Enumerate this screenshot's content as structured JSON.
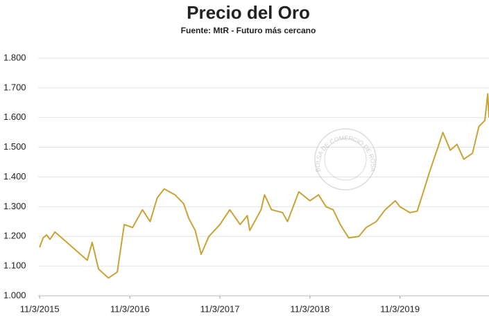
{
  "chart_data": {
    "type": "line",
    "title": "Precio del Oro",
    "subtitle": "Fuente: MtR - Futuro más cercano",
    "watermark": "BOLSA DE COMERCIO DE ROSARIO",
    "x": [
      "2015-03-11",
      "2015-03-25",
      "2015-04-08",
      "2015-04-22",
      "2015-05-12",
      "2015-09-20",
      "2015-10-10",
      "2015-11-05",
      "2015-12-15",
      "2016-01-20",
      "2016-02-17",
      "2016-03-22",
      "2016-05-01",
      "2016-06-01",
      "2016-06-30",
      "2016-07-28",
      "2016-09-10",
      "2016-10-15",
      "2016-11-05",
      "2016-12-01",
      "2016-12-25",
      "2017-01-25",
      "2017-03-11",
      "2017-04-20",
      "2017-06-01",
      "2017-06-30",
      "2017-07-10",
      "2017-08-25",
      "2017-09-08",
      "2017-10-06",
      "2017-11-20",
      "2017-12-10",
      "2018-01-25",
      "2018-03-11",
      "2018-04-15",
      "2018-05-15",
      "2018-06-13",
      "2018-07-12",
      "2018-08-15",
      "2018-09-25",
      "2018-10-25",
      "2018-12-05",
      "2019-01-10",
      "2019-02-20",
      "2019-03-11",
      "2019-04-20",
      "2019-05-20",
      "2019-06-10",
      "2019-07-10",
      "2019-08-12",
      "2019-09-01",
      "2019-10-01",
      "2019-10-28",
      "2019-11-25",
      "2019-12-30",
      "2020-01-25",
      "2020-02-18",
      "2020-03-01",
      "2020-03-06"
    ],
    "series": [
      {
        "name": "Oro",
        "color": "#c9a235",
        "values": [
          1163,
          1195,
          1205,
          1190,
          1215,
          1120,
          1180,
          1090,
          1060,
          1080,
          1240,
          1230,
          1290,
          1250,
          1330,
          1360,
          1340,
          1310,
          1260,
          1220,
          1140,
          1200,
          1240,
          1290,
          1240,
          1270,
          1220,
          1290,
          1340,
          1290,
          1280,
          1250,
          1350,
          1320,
          1340,
          1300,
          1290,
          1240,
          1195,
          1200,
          1230,
          1250,
          1290,
          1320,
          1300,
          1280,
          1285,
          1340,
          1420,
          1500,
          1550,
          1490,
          1510,
          1460,
          1480,
          1570,
          1590,
          1680,
          1600
        ]
      }
    ],
    "xlim": [
      "2015-03-05",
      "2020-03-06"
    ],
    "xticks": [
      {
        "value": "2015-03-11",
        "label": "11/3/2015"
      },
      {
        "value": "2016-03-11",
        "label": "11/3/2016"
      },
      {
        "value": "2017-03-11",
        "label": "11/3/2017"
      },
      {
        "value": "2018-03-11",
        "label": "11/3/2018"
      },
      {
        "value": "2019-03-11",
        "label": "11/3/2019"
      }
    ],
    "ylim": [
      1000,
      1800
    ],
    "yticks": [
      {
        "value": 1000,
        "label": "1.000"
      },
      {
        "value": 1100,
        "label": "1.100"
      },
      {
        "value": 1200,
        "label": "1.200"
      },
      {
        "value": 1300,
        "label": "1.300"
      },
      {
        "value": 1400,
        "label": "1.400"
      },
      {
        "value": 1500,
        "label": "1.500"
      },
      {
        "value": 1600,
        "label": "1.600"
      },
      {
        "value": 1700,
        "label": "1.700"
      },
      {
        "value": 1800,
        "label": "1.800"
      }
    ],
    "grid": true
  }
}
